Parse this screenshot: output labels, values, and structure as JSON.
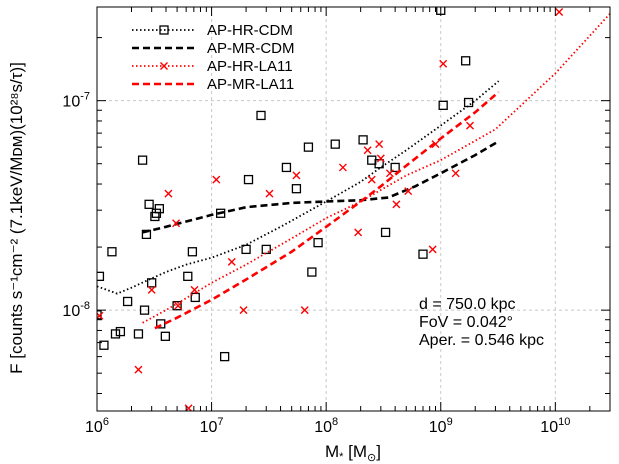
{
  "chart_data": {
    "type": "scatter",
    "title": "",
    "xlabel": {
      "base": "M",
      "sub": "*",
      "unit_open": " [M",
      "unit_sub": "⊙",
      "unit_close": "]"
    },
    "ylabel": "F [counts s⁻¹cm⁻² (7.1keV/Mᴅᴍ)(10²⁸s/τ)]",
    "xscale": "log",
    "yscale": "log",
    "xlim": [
      1000000,
      30000000000
    ],
    "ylim": [
      3.3e-09,
      2.8e-07
    ],
    "x_ticks": [
      {
        "value": 1000000,
        "base": "10",
        "exp": "6"
      },
      {
        "value": 10000000,
        "base": "10",
        "exp": "7"
      },
      {
        "value": 100000000,
        "base": "10",
        "exp": "8"
      },
      {
        "value": 1000000000,
        "base": "10",
        "exp": "9"
      },
      {
        "value": 10000000000,
        "base": "10",
        "exp": "10"
      }
    ],
    "y_ticks": [
      {
        "value": 1e-08,
        "base": "10",
        "exp": "-8"
      },
      {
        "value": 1e-07,
        "base": "10",
        "exp": "-7"
      }
    ],
    "legend_position": "top-left",
    "annotations": [
      "d  = 750.0 kpc",
      "FoV = 0.042°",
      "Aper. = 0.546 kpc"
    ],
    "series": [
      {
        "name": "AP-HR-CDM",
        "color": "#000000",
        "line_style": "dotted",
        "marker": "square",
        "line": {
          "x": [
            1000000,
            1500000,
            2000000,
            2700000,
            4000000,
            6000000,
            10000000,
            20000000,
            40000000,
            100000000,
            200000000,
            300000000,
            500000000,
            1000000000,
            2000000000,
            3200000000
          ],
          "y": [
            1.3e-08,
            1.2e-08,
            1.28e-08,
            1.38e-08,
            1.52e-08,
            1.65e-08,
            1.78e-08,
            2.05e-08,
            2.5e-08,
            3.3e-08,
            4.1e-08,
            4.8e-08,
            5.8e-08,
            7.6e-08,
            1e-07,
            1.24e-07
          ]
        },
        "points": {
          "x": [
            1000000,
            1050000,
            1150000,
            1350000,
            1450000,
            1600000,
            1850000,
            2300000,
            2500000,
            2600000,
            2700000,
            2850000,
            3000000,
            3200000,
            3300000,
            3500000,
            3600000,
            3950000,
            5000000,
            6200000,
            6800000,
            7200000,
            12000000,
            13000000,
            20000000,
            21000000,
            27000000,
            30000000,
            45000000,
            55000000,
            70000000,
            75000000,
            85000000,
            120000000,
            210000000,
            250000000,
            290000000,
            330000000,
            400000000,
            700000000,
            1000000000,
            1050000000,
            1650000000,
            1750000000
          ],
          "y": [
            9.5e-09,
            1.45e-08,
            6.8e-09,
            1.9e-08,
            7.7e-09,
            7.9e-09,
            1.1e-08,
            7.7e-09,
            5.2e-08,
            1e-08,
            2.3e-08,
            3.2e-08,
            1.35e-08,
            2.8e-08,
            2.9e-08,
            3.05e-08,
            8.6e-09,
            7.5e-09,
            1.05e-08,
            1.45e-08,
            1.9e-08,
            1.15e-08,
            2.9e-08,
            6e-09,
            1.95e-08,
            4.2e-08,
            8.5e-08,
            1.95e-08,
            4.8e-08,
            3.8e-08,
            6e-08,
            1.52e-08,
            2.1e-08,
            6.2e-08,
            6.5e-08,
            5.2e-08,
            5e-08,
            2.35e-08,
            4.8e-08,
            1.85e-08,
            2.7e-07,
            9.5e-08,
            1.55e-07,
            9.8e-08
          ]
        }
      },
      {
        "name": "AP-MR-CDM",
        "color": "#000000",
        "line_style": "dashed",
        "marker": "none",
        "line": {
          "x": [
            2500000,
            4000000,
            6000000,
            10000000,
            20000000,
            50000000,
            100000000,
            200000000,
            350000000,
            600000000,
            1000000000,
            2000000000,
            3200000000
          ],
          "y": [
            2.35e-08,
            2.5e-08,
            2.65e-08,
            2.85e-08,
            3.1e-08,
            3.25e-08,
            3.3e-08,
            3.35e-08,
            3.45e-08,
            3.9e-08,
            4.5e-08,
            5.5e-08,
            6.4e-08
          ]
        }
      },
      {
        "name": "AP-HR-LA11",
        "color": "#ff0000",
        "line_style": "dotted",
        "marker": "x",
        "line": {
          "x": [
            2500000,
            4000000,
            7000000,
            10000000,
            20000000,
            50000000,
            100000000,
            200000000,
            500000000,
            1000000000,
            3000000000,
            10000000000,
            30000000000
          ],
          "y": [
            8.7e-09,
            1e-08,
            1.2e-08,
            1.35e-08,
            1.65e-08,
            2.2e-08,
            2.75e-08,
            3.3e-08,
            4.4e-08,
            5.2e-08,
            7.3e-08,
            1.35e-07,
            2.6e-07
          ]
        },
        "points": {
          "x": [
            1050000,
            2300000,
            3000000,
            4200000,
            4900000,
            5100000,
            6300000,
            7100000,
            11000000,
            15000000,
            19000000,
            32000000,
            55000000,
            65000000,
            140000000,
            190000000,
            230000000,
            250000000,
            290000000,
            300000000,
            360000000,
            410000000,
            520000000,
            850000000,
            900000000,
            1050000000,
            1350000000,
            1800000000,
            10800000000
          ],
          "y": [
            9.4e-09,
            5.2e-09,
            1.25e-08,
            3.6e-08,
            2.6e-08,
            1.05e-08,
            3.4e-09,
            1.25e-08,
            4.2e-08,
            1.7e-08,
            1e-08,
            3.6e-08,
            4.4e-08,
            1e-08,
            4.8e-08,
            2.35e-08,
            5.8e-08,
            4.2e-08,
            6.2e-08,
            5.3e-08,
            4.5e-08,
            3.2e-08,
            3.7e-08,
            1.95e-08,
            6.2e-08,
            1.5e-07,
            4.5e-08,
            7.6e-08,
            2.65e-07
          ]
        }
      },
      {
        "name": "AP-MR-LA11",
        "color": "#ff0000",
        "line_style": "dashed",
        "marker": "none",
        "line": {
          "x": [
            3200000,
            5000000,
            10000000,
            20000000,
            50000000,
            100000000,
            200000000,
            300000000,
            500000000,
            1000000000,
            2000000000,
            3200000000
          ],
          "y": [
            8.2e-09,
            9.2e-09,
            1.12e-08,
            1.4e-08,
            1.9e-08,
            2.5e-08,
            3.3e-08,
            3.9e-08,
            4.9e-08,
            6.6e-08,
            8.8e-08,
            1.1e-07
          ]
        }
      }
    ]
  }
}
